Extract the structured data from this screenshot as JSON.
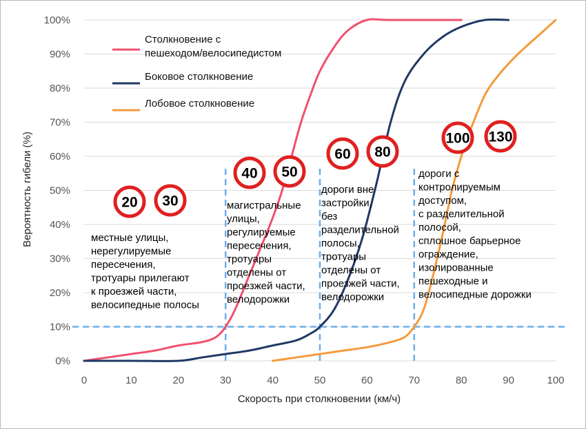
{
  "chart_data": {
    "type": "line",
    "xlabel": "Скорость при столкновении (км/ч)",
    "ylabel": "Вероятность гибели (%)",
    "xlim": [
      0,
      100
    ],
    "ylim": [
      0,
      100
    ],
    "x_ticks": [
      "0",
      "10",
      "20",
      "30",
      "40",
      "50",
      "60",
      "70",
      "80",
      "90",
      "100"
    ],
    "y_ticks": [
      "0%",
      "10%",
      "20%",
      "30%",
      "40%",
      "50%",
      "60%",
      "70%",
      "80%",
      "90%",
      "100%"
    ],
    "legend_position": "top-left",
    "series": [
      {
        "name": "Столкновение с пешеходом/велосипедистом",
        "legend_lines": [
          "Столкновение с",
          "пешеходом/велосипедистом"
        ],
        "color": "#f0506e",
        "points": [
          [
            0,
            0
          ],
          [
            5,
            1
          ],
          [
            10,
            2
          ],
          [
            15,
            3
          ],
          [
            20,
            4.5
          ],
          [
            25,
            5.5
          ],
          [
            28,
            7
          ],
          [
            30,
            10
          ],
          [
            32,
            15
          ],
          [
            35,
            25
          ],
          [
            38,
            35
          ],
          [
            40,
            42
          ],
          [
            42,
            50
          ],
          [
            44,
            60
          ],
          [
            46,
            70
          ],
          [
            48,
            78
          ],
          [
            50,
            85
          ],
          [
            53,
            92
          ],
          [
            56,
            97
          ],
          [
            60,
            100
          ],
          [
            65,
            100
          ],
          [
            80,
            100
          ]
        ]
      },
      {
        "name": "Боковое столкновение",
        "legend_lines": [
          "Боковое столкновение"
        ],
        "color": "#1f3864",
        "points": [
          [
            0,
            0
          ],
          [
            10,
            0
          ],
          [
            20,
            0
          ],
          [
            25,
            1
          ],
          [
            30,
            2
          ],
          [
            35,
            3
          ],
          [
            40,
            4.5
          ],
          [
            45,
            6
          ],
          [
            48,
            8
          ],
          [
            50,
            10
          ],
          [
            53,
            15
          ],
          [
            56,
            24
          ],
          [
            59,
            36
          ],
          [
            62,
            52
          ],
          [
            65,
            70
          ],
          [
            68,
            82
          ],
          [
            72,
            90
          ],
          [
            76,
            95
          ],
          [
            80,
            98
          ],
          [
            85,
            100
          ],
          [
            90,
            100
          ]
        ]
      },
      {
        "name": "Лобовое столкновение",
        "legend_lines": [
          "Лобовое столкновение"
        ],
        "color": "#f59a3c",
        "points": [
          [
            40,
            0
          ],
          [
            45,
            1
          ],
          [
            50,
            2
          ],
          [
            55,
            3
          ],
          [
            60,
            4
          ],
          [
            65,
            5.5
          ],
          [
            68,
            7
          ],
          [
            70,
            10
          ],
          [
            72,
            15
          ],
          [
            74,
            25
          ],
          [
            76,
            37
          ],
          [
            78,
            50
          ],
          [
            80,
            60
          ],
          [
            82,
            68
          ],
          [
            85,
            78
          ],
          [
            88,
            84
          ],
          [
            92,
            90
          ],
          [
            96,
            95
          ],
          [
            100,
            100
          ]
        ]
      }
    ],
    "threshold_line": {
      "y": 10,
      "color": "#6aaeea"
    },
    "zone_dividers": {
      "x": [
        30,
        50,
        70
      ],
      "color": "#6aaeea"
    },
    "speed_signs": [
      "20",
      "30",
      "40",
      "50",
      "60",
      "80",
      "100",
      "130"
    ],
    "zones": [
      [
        "местные улицы,",
        "нерегулируемые",
        "пересечения,",
        "тротуары прилегают",
        "к проезжей части,",
        "велосипедные полосы"
      ],
      [
        "магистральные",
        "улицы,",
        "регулируемые",
        "пересечения,",
        "тротуары",
        "отделены от",
        "проезжей части,",
        "велодорожки"
      ],
      [
        "дороги вне",
        "застройки,",
        "без",
        "разделительной",
        "полосы,",
        "тротуары",
        "отделены от",
        "проезжей части,",
        "велодорожки"
      ],
      [
        "дороги с",
        "контролируемым",
        "доступом,",
        "с разделительной",
        "полосой,",
        "сплошное барьерное",
        "ограждение,",
        "изолированные",
        "пешеходные и",
        "велосипедные дорожки"
      ]
    ],
    "sign_colors": {
      "ring": "#e02020",
      "fill": "#ffffff"
    }
  }
}
